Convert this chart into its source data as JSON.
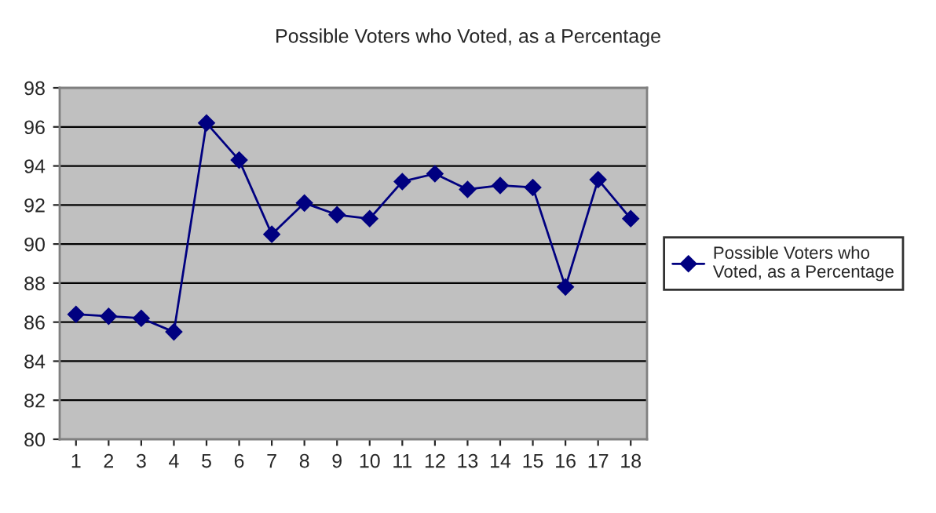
{
  "chart_data": {
    "type": "line",
    "title": "Possible Voters who Voted, as a Percentage",
    "categories": [
      "1",
      "2",
      "3",
      "4",
      "5",
      "6",
      "7",
      "8",
      "9",
      "10",
      "11",
      "12",
      "13",
      "14",
      "15",
      "16",
      "17",
      "18"
    ],
    "series": [
      {
        "name": "Possible Voters who Voted, as a Percentage",
        "color": "#000080",
        "values": [
          86.4,
          86.3,
          86.2,
          85.5,
          96.2,
          94.3,
          90.5,
          92.1,
          91.5,
          91.3,
          93.2,
          93.6,
          92.8,
          93.0,
          92.9,
          87.8,
          93.3,
          91.3
        ]
      }
    ],
    "ylim": [
      80,
      98
    ],
    "yticks": [
      80,
      82,
      84,
      86,
      88,
      90,
      92,
      94,
      96,
      98
    ],
    "grid": "y",
    "legend": "right",
    "marker": "diamond",
    "line_style": "solid"
  }
}
